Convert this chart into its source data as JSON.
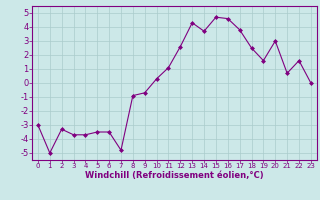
{
  "x": [
    0,
    1,
    2,
    3,
    4,
    5,
    6,
    7,
    8,
    9,
    10,
    11,
    12,
    13,
    14,
    15,
    16,
    17,
    18,
    19,
    20,
    21,
    22,
    23
  ],
  "y": [
    -3,
    -5,
    -3.3,
    -3.7,
    -3.7,
    -3.5,
    -3.5,
    -4.8,
    -0.9,
    -0.7,
    0.3,
    1.1,
    2.6,
    4.3,
    3.7,
    4.7,
    4.6,
    3.8,
    2.5,
    1.6,
    3.0,
    0.7,
    1.6,
    0.0
  ],
  "line_color": "#800080",
  "marker": "D",
  "marker_size": 2,
  "bg_color": "#cce8e8",
  "grid_color": "#aacccc",
  "xlabel": "Windchill (Refroidissement éolien,°C)",
  "xlabel_color": "#800080",
  "tick_color": "#800080",
  "spine_color": "#800080",
  "ylim": [
    -5.5,
    5.5
  ],
  "xlim": [
    -0.5,
    23.5
  ],
  "yticks": [
    -5,
    -4,
    -3,
    -2,
    -1,
    0,
    1,
    2,
    3,
    4,
    5
  ],
  "xticks": [
    0,
    1,
    2,
    3,
    4,
    5,
    6,
    7,
    8,
    9,
    10,
    11,
    12,
    13,
    14,
    15,
    16,
    17,
    18,
    19,
    20,
    21,
    22,
    23
  ],
  "ytick_fontsize": 6,
  "xtick_fontsize": 5,
  "xlabel_fontsize": 6
}
